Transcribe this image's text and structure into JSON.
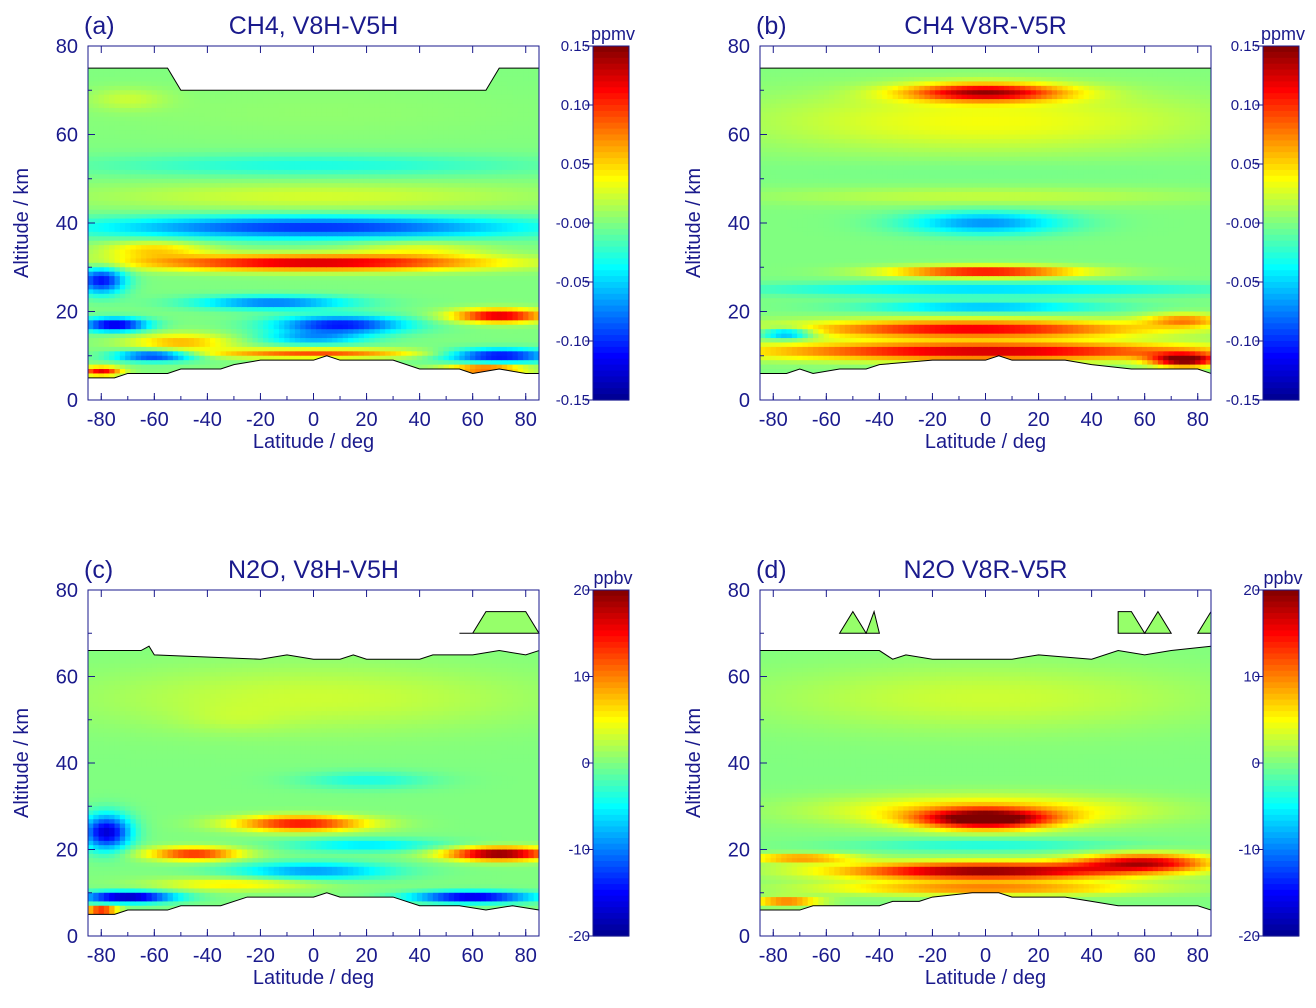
{
  "colormap": [
    "#00008f",
    "#0000ff",
    "#0080ff",
    "#00ffff",
    "#80ff80",
    "#ffff00",
    "#ff8000",
    "#ff0000",
    "#800000"
  ],
  "axis_color": "#1a1a8c",
  "chart_data": [
    {
      "type": "heatmap",
      "panel_label": "(a)",
      "title": "CH4, V8H-V5H",
      "xlabel": "Latitude / deg",
      "ylabel": "Altitude / km",
      "xlim": [
        -85,
        85
      ],
      "ylim": [
        0,
        80
      ],
      "xticks": [
        -80,
        -60,
        -40,
        -20,
        0,
        20,
        40,
        60,
        80
      ],
      "yticks": [
        0,
        20,
        40,
        60,
        80
      ],
      "colorbar": {
        "unit": "ppmv",
        "range": [
          -0.15,
          0.15
        ],
        "ticks": [
          "0.15",
          "0.10",
          "0.05",
          "-0.00",
          "-0.05",
          "-0.10",
          "-0.15"
        ]
      },
      "top_boundary": [
        [
          -85,
          75
        ],
        [
          -55,
          75
        ],
        [
          -50,
          70
        ],
        [
          65,
          70
        ],
        [
          70,
          75
        ],
        [
          85,
          75
        ]
      ],
      "bottom_boundary": [
        [
          -85,
          5
        ],
        [
          -75,
          5
        ],
        [
          -70,
          6
        ],
        [
          -55,
          6
        ],
        [
          -50,
          7
        ],
        [
          -35,
          7
        ],
        [
          -30,
          8
        ],
        [
          -20,
          9
        ],
        [
          0,
          9
        ],
        [
          5,
          10
        ],
        [
          10,
          9
        ],
        [
          30,
          9
        ],
        [
          40,
          7
        ],
        [
          55,
          7
        ],
        [
          60,
          6
        ],
        [
          70,
          7
        ],
        [
          80,
          6
        ],
        [
          85,
          6
        ]
      ],
      "features": [
        {
          "lat": 0,
          "alt": 65,
          "wlat": 170,
          "walt": 12,
          "value": 0.005
        },
        {
          "lat": -70,
          "alt": 68,
          "wlat": 30,
          "walt": 5,
          "value": 0.02
        },
        {
          "lat": 0,
          "alt": 53,
          "wlat": 170,
          "walt": 5,
          "value": -0.03
        },
        {
          "lat": 0,
          "alt": 46,
          "wlat": 170,
          "walt": 6,
          "value": 0.025
        },
        {
          "lat": 0,
          "alt": 39,
          "wlat": 160,
          "walt": 5,
          "value": -0.1
        },
        {
          "lat": 0,
          "alt": 31,
          "wlat": 130,
          "walt": 3.5,
          "value": 0.13
        },
        {
          "lat": -60,
          "alt": 34,
          "wlat": 40,
          "walt": 4,
          "value": 0.05
        },
        {
          "lat": 40,
          "alt": 34,
          "wlat": 50,
          "walt": 4,
          "value": 0.03
        },
        {
          "lat": -80,
          "alt": 27,
          "wlat": 18,
          "walt": 6,
          "value": -0.11
        },
        {
          "lat": -15,
          "alt": 22,
          "wlat": 60,
          "walt": 3,
          "value": -0.08
        },
        {
          "lat": 10,
          "alt": 17,
          "wlat": 50,
          "walt": 4,
          "value": -0.11
        },
        {
          "lat": -75,
          "alt": 17,
          "wlat": 25,
          "walt": 3,
          "value": -0.13
        },
        {
          "lat": 70,
          "alt": 19,
          "wlat": 35,
          "walt": 3,
          "value": 0.13
        },
        {
          "lat": -50,
          "alt": 13,
          "wlat": 40,
          "walt": 4,
          "value": 0.06
        },
        {
          "lat": -60,
          "alt": 10,
          "wlat": 30,
          "walt": 2.5,
          "value": -0.11
        },
        {
          "lat": 70,
          "alt": 10,
          "wlat": 40,
          "walt": 3,
          "value": -0.12
        },
        {
          "lat": 0,
          "alt": 10.5,
          "wlat": 80,
          "walt": 2,
          "value": 0.09
        },
        {
          "lat": 0,
          "alt": 14,
          "wlat": 40,
          "walt": 3,
          "value": -0.06
        },
        {
          "lat": -80,
          "alt": 6.5,
          "wlat": 15,
          "walt": 2,
          "value": 0.12
        },
        {
          "lat": 65,
          "alt": 7,
          "wlat": 30,
          "walt": 2,
          "value": 0.1
        }
      ]
    },
    {
      "type": "heatmap",
      "panel_label": "(b)",
      "title": "CH4 V8R-V5R",
      "xlabel": "Latitude / deg",
      "ylabel": "Altitude / km",
      "xlim": [
        -85,
        85
      ],
      "ylim": [
        0,
        80
      ],
      "xticks": [
        -80,
        -60,
        -40,
        -20,
        0,
        20,
        40,
        60,
        80
      ],
      "yticks": [
        0,
        20,
        40,
        60,
        80
      ],
      "colorbar": {
        "unit": "ppmv",
        "range": [
          -0.15,
          0.15
        ],
        "ticks": [
          "0.15",
          "0.10",
          "0.05",
          "-0.00",
          "-0.05",
          "-0.10",
          "-0.15"
        ]
      },
      "top_boundary": [
        [
          -85,
          75
        ],
        [
          85,
          75
        ]
      ],
      "bottom_boundary": [
        [
          -85,
          6
        ],
        [
          -75,
          6
        ],
        [
          -70,
          7
        ],
        [
          -65,
          6
        ],
        [
          -55,
          7
        ],
        [
          -45,
          7
        ],
        [
          -40,
          8
        ],
        [
          -20,
          9
        ],
        [
          0,
          9
        ],
        [
          5,
          10
        ],
        [
          10,
          9
        ],
        [
          30,
          9
        ],
        [
          40,
          8
        ],
        [
          55,
          7
        ],
        [
          65,
          7
        ],
        [
          80,
          7
        ],
        [
          85,
          6
        ]
      ],
      "features": [
        {
          "lat": 0,
          "alt": 69.5,
          "wlat": 60,
          "walt": 4,
          "value": 0.13
        },
        {
          "lat": 0,
          "alt": 63,
          "wlat": 170,
          "walt": 14,
          "value": 0.035
        },
        {
          "lat": 0,
          "alt": 52,
          "wlat": 170,
          "walt": 6,
          "value": -0.005
        },
        {
          "lat": 0,
          "alt": 40,
          "wlat": 60,
          "walt": 5,
          "value": -0.07
        },
        {
          "lat": 0,
          "alt": 46,
          "wlat": 170,
          "walt": 4,
          "value": 0.02
        },
        {
          "lat": 0,
          "alt": 29,
          "wlat": 70,
          "walt": 2.5,
          "value": 0.12
        },
        {
          "lat": 0,
          "alt": 25,
          "wlat": 170,
          "walt": 3,
          "value": -0.05
        },
        {
          "lat": 0,
          "alt": 21,
          "wlat": 90,
          "walt": 2.5,
          "value": -0.06
        },
        {
          "lat": -75,
          "alt": 15,
          "wlat": 20,
          "walt": 2.5,
          "value": -0.09
        },
        {
          "lat": -5,
          "alt": 16,
          "wlat": 130,
          "walt": 4,
          "value": 0.12
        },
        {
          "lat": 0,
          "alt": 11,
          "wlat": 170,
          "walt": 4,
          "value": 0.13
        },
        {
          "lat": 75,
          "alt": 18,
          "wlat": 30,
          "walt": 3,
          "value": 0.07
        },
        {
          "lat": 75,
          "alt": 9,
          "wlat": 25,
          "walt": 3,
          "value": 0.15
        }
      ]
    },
    {
      "type": "heatmap",
      "panel_label": "(c)",
      "title": "N2O, V8H-V5H",
      "xlabel": "Latitude / deg",
      "ylabel": "Altitude / km",
      "xlim": [
        -85,
        85
      ],
      "ylim": [
        0,
        80
      ],
      "xticks": [
        -80,
        -60,
        -40,
        -20,
        0,
        20,
        40,
        60,
        80
      ],
      "yticks": [
        0,
        20,
        40,
        60,
        80
      ],
      "colorbar": {
        "unit": "ppbv",
        "range": [
          -20,
          20
        ],
        "ticks": [
          "20",
          "10",
          "0",
          "-10",
          "-20"
        ]
      },
      "top_boundary": [
        [
          -85,
          66
        ],
        [
          -65,
          66
        ],
        [
          -62,
          67
        ],
        [
          -60,
          65
        ],
        [
          -20,
          64
        ],
        [
          -10,
          65
        ],
        [
          0,
          64
        ],
        [
          10,
          64
        ],
        [
          15,
          65
        ],
        [
          20,
          64
        ],
        [
          40,
          64
        ],
        [
          45,
          65
        ],
        [
          60,
          65
        ],
        [
          70,
          66
        ],
        [
          80,
          65
        ],
        [
          85,
          66
        ]
      ],
      "bottom_boundary": [
        [
          -85,
          5
        ],
        [
          -75,
          5
        ],
        [
          -70,
          6
        ],
        [
          -55,
          6
        ],
        [
          -50,
          7
        ],
        [
          -35,
          7
        ],
        [
          -25,
          9
        ],
        [
          0,
          9
        ],
        [
          5,
          10
        ],
        [
          10,
          9
        ],
        [
          30,
          9
        ],
        [
          40,
          7
        ],
        [
          55,
          7
        ],
        [
          65,
          6
        ],
        [
          75,
          7
        ],
        [
          85,
          6
        ]
      ],
      "island": [
        [
          55,
          70
        ],
        [
          60,
          70
        ],
        [
          65,
          75
        ],
        [
          80,
          75
        ],
        [
          85,
          70
        ]
      ],
      "features": [
        {
          "lat": 0,
          "alt": 55,
          "wlat": 170,
          "walt": 15,
          "value": 3
        },
        {
          "lat": -30,
          "alt": 50,
          "wlat": 40,
          "walt": 6,
          "value": 1
        },
        {
          "lat": 20,
          "alt": 36,
          "wlat": 50,
          "walt": 4,
          "value": -4
        },
        {
          "lat": -5,
          "alt": 26,
          "wlat": 50,
          "walt": 3.5,
          "value": 15
        },
        {
          "lat": -78,
          "alt": 24,
          "wlat": 18,
          "walt": 8,
          "value": -17
        },
        {
          "lat": -45,
          "alt": 19,
          "wlat": 35,
          "walt": 3,
          "value": 14
        },
        {
          "lat": 70,
          "alt": 19,
          "wlat": 40,
          "walt": 3,
          "value": 21
        },
        {
          "lat": 20,
          "alt": 21,
          "wlat": 60,
          "walt": 3,
          "value": -6
        },
        {
          "lat": 0,
          "alt": 15,
          "wlat": 60,
          "walt": 4,
          "value": -9
        },
        {
          "lat": -70,
          "alt": 9,
          "wlat": 35,
          "walt": 2.5,
          "value": -20
        },
        {
          "lat": 60,
          "alt": 9,
          "wlat": 45,
          "walt": 2.5,
          "value": -18
        },
        {
          "lat": -30,
          "alt": 12,
          "wlat": 60,
          "walt": 3,
          "value": 6
        },
        {
          "lat": -80,
          "alt": 6,
          "wlat": 12,
          "walt": 1.5,
          "value": 20
        }
      ]
    },
    {
      "type": "heatmap",
      "panel_label": "(d)",
      "title": "N2O V8R-V5R",
      "xlabel": "Latitude / deg",
      "ylabel": "Altitude / km",
      "xlim": [
        -85,
        85
      ],
      "ylim": [
        0,
        80
      ],
      "xticks": [
        -80,
        -60,
        -40,
        -20,
        0,
        20,
        40,
        60,
        80
      ],
      "yticks": [
        0,
        20,
        40,
        60,
        80
      ],
      "colorbar": {
        "unit": "ppbv",
        "range": [
          -20,
          20
        ],
        "ticks": [
          "20",
          "10",
          "0",
          "-10",
          "-20"
        ]
      },
      "top_boundary": [
        [
          -85,
          66
        ],
        [
          -40,
          66
        ],
        [
          -35,
          64
        ],
        [
          -30,
          65
        ],
        [
          -20,
          64
        ],
        [
          0,
          64
        ],
        [
          10,
          64
        ],
        [
          20,
          65
        ],
        [
          40,
          64
        ],
        [
          50,
          66
        ],
        [
          60,
          65
        ],
        [
          70,
          66
        ],
        [
          85,
          67
        ]
      ],
      "bottom_boundary": [
        [
          -85,
          6
        ],
        [
          -70,
          6
        ],
        [
          -65,
          7
        ],
        [
          -40,
          7
        ],
        [
          -35,
          8
        ],
        [
          -25,
          8
        ],
        [
          -20,
          9
        ],
        [
          -5,
          10
        ],
        [
          5,
          10
        ],
        [
          10,
          9
        ],
        [
          30,
          9
        ],
        [
          40,
          8
        ],
        [
          50,
          7
        ],
        [
          65,
          7
        ],
        [
          80,
          7
        ],
        [
          85,
          6
        ]
      ],
      "islands": [
        [
          [
            -55,
            70
          ],
          [
            -50,
            75
          ],
          [
            -45,
            70
          ]
        ],
        [
          [
            -45,
            70
          ],
          [
            -42,
            75
          ],
          [
            -40,
            70
          ]
        ],
        [
          [
            50,
            70
          ],
          [
            50,
            75
          ],
          [
            55,
            75
          ],
          [
            60,
            70
          ]
        ],
        [
          [
            60,
            70
          ],
          [
            65,
            75
          ],
          [
            70,
            70
          ]
        ],
        [
          [
            80,
            70
          ],
          [
            85,
            75
          ],
          [
            85,
            70
          ]
        ]
      ],
      "features": [
        {
          "lat": 0,
          "alt": 55,
          "wlat": 170,
          "walt": 15,
          "value": 3
        },
        {
          "lat": 0,
          "alt": 27,
          "wlat": 50,
          "walt": 4.5,
          "value": 20
        },
        {
          "lat": 0,
          "alt": 29,
          "wlat": 120,
          "walt": 7,
          "value": 7
        },
        {
          "lat": 0,
          "alt": 21,
          "wlat": 100,
          "walt": 3,
          "value": -4
        },
        {
          "lat": 0,
          "alt": 15,
          "wlat": 110,
          "walt": 4,
          "value": 20
        },
        {
          "lat": 60,
          "alt": 17,
          "wlat": 50,
          "walt": 4,
          "value": 16
        },
        {
          "lat": -70,
          "alt": 18,
          "wlat": 40,
          "walt": 2,
          "value": 10
        },
        {
          "lat": 0,
          "alt": 11,
          "wlat": 120,
          "walt": 3,
          "value": 10
        },
        {
          "lat": -75,
          "alt": 8,
          "wlat": 25,
          "walt": 2,
          "value": 12
        }
      ]
    }
  ]
}
